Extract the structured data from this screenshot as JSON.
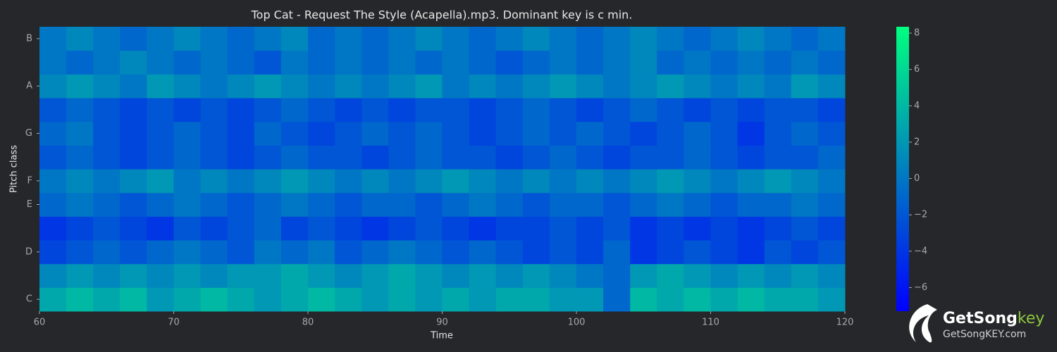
{
  "chart_data": {
    "type": "heatmap",
    "title": "Top Cat - Request The Style (Acapella).mp3. Dominant key is c min.",
    "x_label": "Time",
    "y_label": "Pitch class",
    "categories": [
      "C",
      null,
      "D",
      null,
      "E",
      "F",
      null,
      "G",
      null,
      "A",
      null,
      "B"
    ],
    "x_edges": [
      60,
      62,
      64,
      66,
      68,
      70,
      72,
      74,
      76,
      78,
      80,
      82,
      84,
      86,
      88,
      90,
      92,
      94,
      96,
      98,
      100,
      102,
      104,
      106,
      108,
      110,
      112,
      114,
      116,
      118,
      120
    ],
    "xlim": [
      60,
      120
    ],
    "xticks": [
      60,
      70,
      80,
      90,
      100,
      110,
      120
    ],
    "zlim": [
      -7.3,
      8.35
    ],
    "zticks": [
      {
        "value": -6,
        "label": "−6"
      },
      {
        "value": -4,
        "label": "−4"
      },
      {
        "value": -2,
        "label": "−2"
      },
      0,
      2,
      4,
      6,
      8
    ],
    "colormap": [
      "#0000ff",
      "#00ff80"
    ],
    "z": [
      [
        3,
        4,
        3,
        4,
        2,
        3,
        4,
        3,
        2,
        3,
        4,
        3,
        2,
        3,
        2,
        3,
        2,
        3,
        3,
        2,
        2,
        -1,
        4,
        3,
        4,
        3,
        4,
        3,
        3,
        2
      ],
      [
        1,
        2,
        1,
        2,
        1,
        2,
        1,
        2,
        2,
        3,
        2,
        1,
        2,
        3,
        2,
        1,
        2,
        1,
        2,
        1,
        0,
        -1,
        2,
        3,
        2,
        1,
        2,
        1,
        2,
        1
      ],
      [
        -3,
        -2,
        -1,
        -2,
        -1,
        0,
        -1,
        -2,
        0,
        -1,
        0,
        -2,
        -1,
        0,
        -1,
        -2,
        -1,
        -2,
        -3,
        -2,
        -3,
        -1,
        -4,
        -3,
        -2,
        -3,
        -4,
        -2,
        -3,
        -2
      ],
      [
        -4,
        -3,
        -2,
        -3,
        -4,
        -2,
        -3,
        -2,
        -1,
        -3,
        -2,
        -3,
        -4,
        -3,
        -2,
        -3,
        -4,
        -3,
        -3,
        -2,
        -3,
        -2,
        -4,
        -3,
        -4,
        -3,
        -4,
        -3,
        -2,
        -3
      ],
      [
        -1,
        0,
        -1,
        -2,
        -1,
        0,
        -1,
        -2,
        -1,
        0,
        -1,
        -2,
        -1,
        -1,
        -2,
        -1,
        0,
        -1,
        -2,
        -1,
        -1,
        -2,
        -1,
        0,
        -1,
        -2,
        -1,
        -1,
        0,
        -1
      ],
      [
        0,
        1,
        0,
        1,
        2,
        0,
        1,
        0,
        1,
        2,
        1,
        0,
        1,
        0,
        1,
        2,
        1,
        0,
        1,
        0,
        1,
        0,
        1,
        2,
        1,
        0,
        1,
        2,
        1,
        0
      ],
      [
        -2,
        -1,
        -2,
        -3,
        -2,
        -1,
        -2,
        -3,
        -2,
        -1,
        -2,
        -2,
        -3,
        -2,
        -1,
        -2,
        -2,
        -3,
        -2,
        -1,
        -2,
        -3,
        -2,
        -2,
        -1,
        -2,
        -3,
        -2,
        -2,
        -1
      ],
      [
        -1,
        0,
        -2,
        -3,
        -2,
        -1,
        -2,
        -3,
        -1,
        -2,
        -3,
        -2,
        -1,
        -2,
        -1,
        -2,
        -3,
        -2,
        -1,
        -2,
        -1,
        -2,
        -3,
        -2,
        -1,
        -2,
        -4,
        -2,
        -1,
        -2
      ],
      [
        -2,
        -1,
        -2,
        -3,
        -2,
        -3,
        -2,
        -3,
        -2,
        -1,
        -2,
        -3,
        -2,
        -3,
        -2,
        -2,
        -3,
        -2,
        -1,
        -2,
        -3,
        -2,
        -1,
        -2,
        -3,
        -2,
        -3,
        -2,
        -2,
        -3
      ],
      [
        1,
        2,
        1,
        0,
        2,
        1,
        0,
        1,
        2,
        1,
        0,
        1,
        0,
        1,
        2,
        0,
        1,
        0,
        1,
        2,
        1,
        0,
        1,
        2,
        1,
        0,
        1,
        0,
        2,
        1
      ],
      [
        0,
        -1,
        0,
        1,
        0,
        -1,
        0,
        -1,
        -2,
        0,
        -1,
        0,
        -1,
        0,
        -1,
        0,
        -1,
        -2,
        -1,
        0,
        -1,
        0,
        1,
        -1,
        0,
        -1,
        0,
        -1,
        0,
        -1
      ],
      [
        0,
        1,
        0,
        -1,
        0,
        1,
        0,
        -1,
        0,
        1,
        -1,
        0,
        -1,
        0,
        1,
        0,
        -1,
        0,
        1,
        0,
        -1,
        0,
        1,
        0,
        -1,
        0,
        1,
        0,
        -1,
        0
      ]
    ]
  },
  "watermark": {
    "brand": "GetSong",
    "brand_accent": "key",
    "url": "GetSongKEY.com"
  }
}
